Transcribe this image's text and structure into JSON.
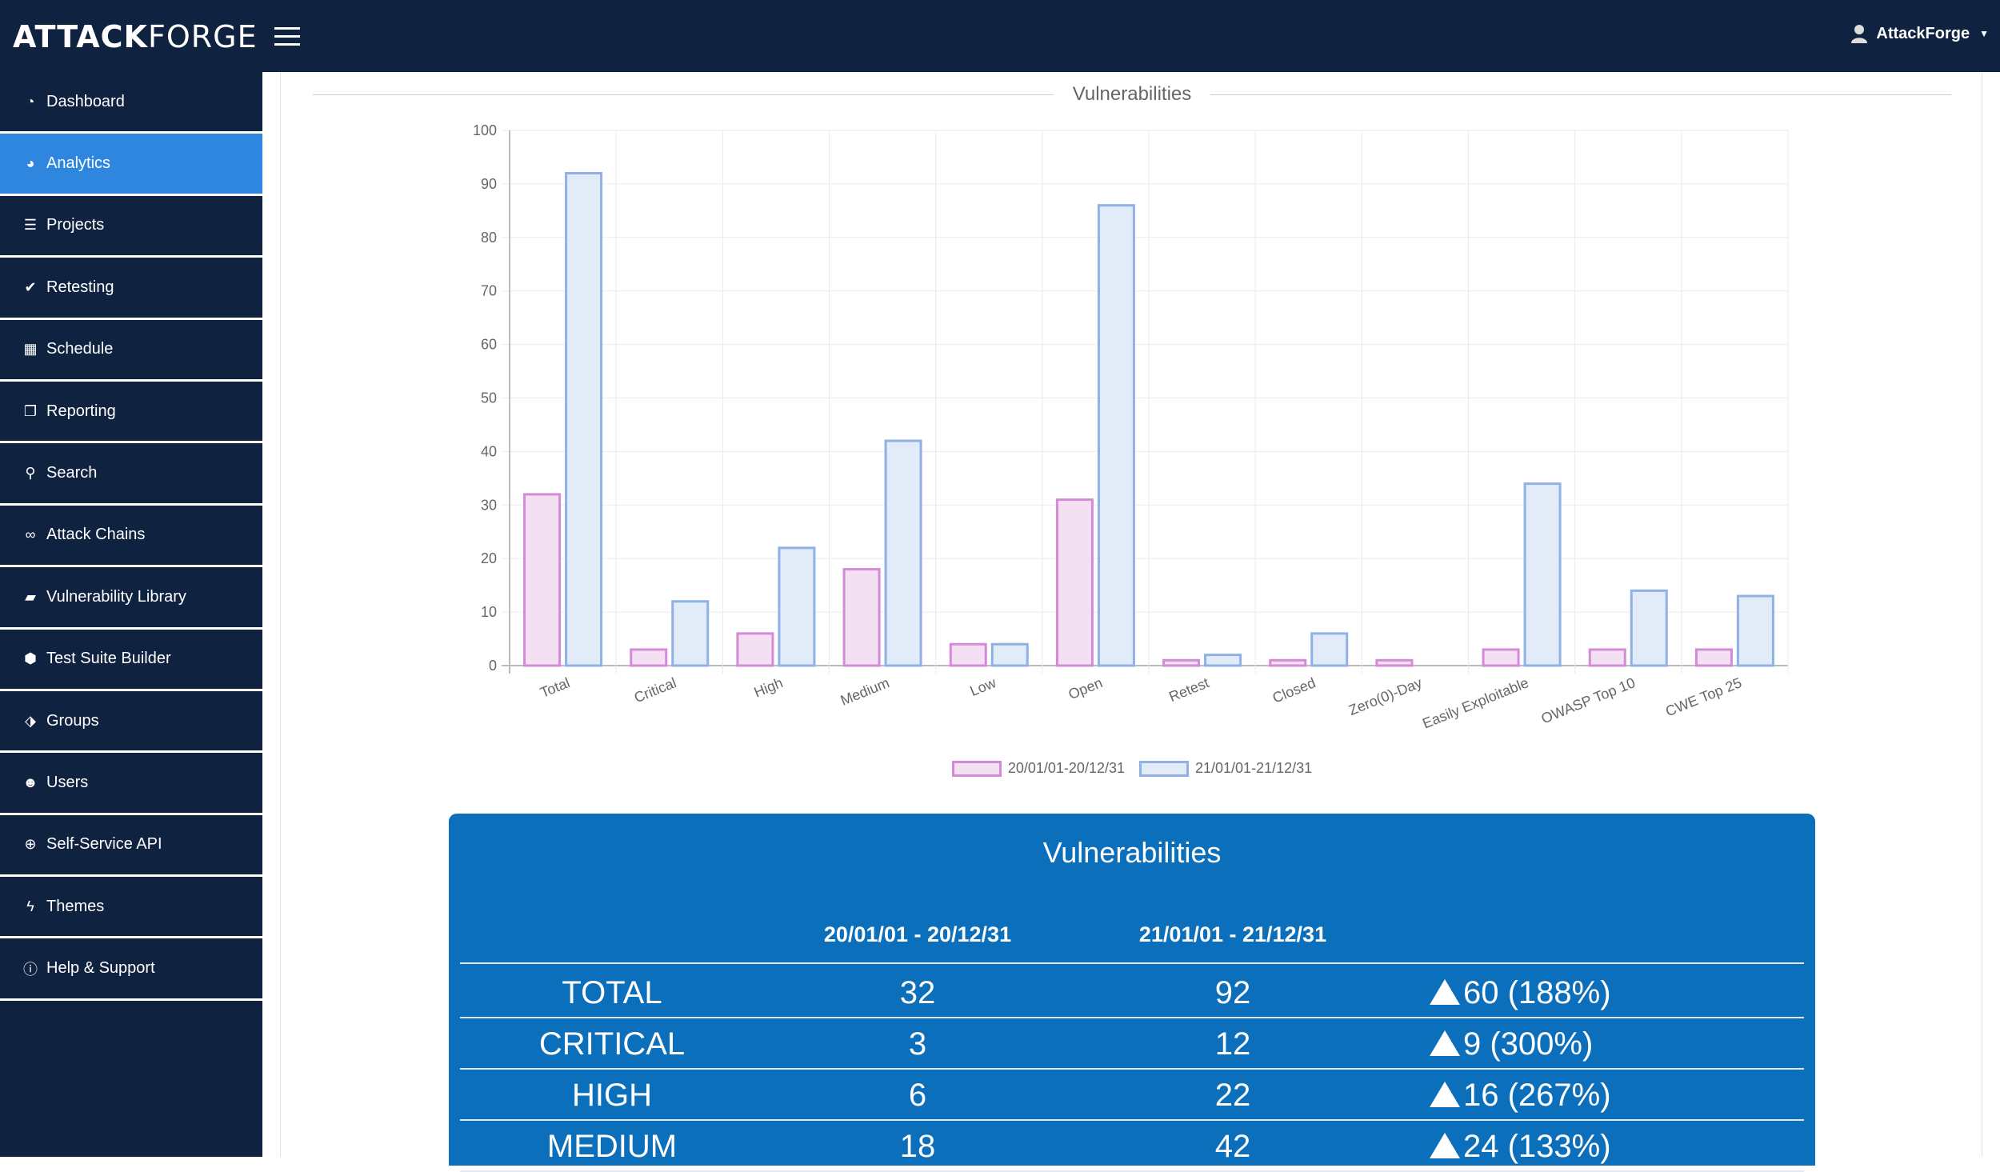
{
  "app": {
    "logo_bold": "ATTACK",
    "logo_thin": "FORGE",
    "user": "AttackForge"
  },
  "sidebar": {
    "items": [
      {
        "label": "Dashboard",
        "icon": "dashboard-icon",
        "glyph": "◔",
        "active": false
      },
      {
        "label": "Analytics",
        "icon": "pie-chart-icon",
        "glyph": "◕",
        "active": true
      },
      {
        "label": "Projects",
        "icon": "list-icon",
        "glyph": "☰",
        "active": false
      },
      {
        "label": "Retesting",
        "icon": "check-icon",
        "glyph": "✔",
        "active": false
      },
      {
        "label": "Schedule",
        "icon": "calendar-icon",
        "glyph": "▦",
        "active": false
      },
      {
        "label": "Reporting",
        "icon": "document-icon",
        "glyph": "❐",
        "active": false
      },
      {
        "label": "Search",
        "icon": "search-icon",
        "glyph": "⚲",
        "active": false
      },
      {
        "label": "Attack Chains",
        "icon": "link-icon",
        "glyph": "∞",
        "active": false
      },
      {
        "label": "Vulnerability Library",
        "icon": "book-icon",
        "glyph": "▰",
        "active": false
      },
      {
        "label": "Test Suite Builder",
        "icon": "cube-icon",
        "glyph": "⬢",
        "active": false
      },
      {
        "label": "Groups",
        "icon": "tags-icon",
        "glyph": "⬗",
        "active": false
      },
      {
        "label": "Users",
        "icon": "users-icon",
        "glyph": "☻",
        "active": false
      },
      {
        "label": "Self-Service API",
        "icon": "search-plus-icon",
        "glyph": "⊕",
        "active": false
      },
      {
        "label": "Themes",
        "icon": "bolt-icon",
        "glyph": "ϟ",
        "active": false
      },
      {
        "label": "Help & Support",
        "icon": "info-icon",
        "glyph": "ⓘ",
        "active": false
      }
    ]
  },
  "section_title": "Vulnerabilities",
  "chart_data": {
    "type": "bar",
    "categories": [
      "Total",
      "Critical",
      "High",
      "Medium",
      "Low",
      "Open",
      "Retest",
      "Closed",
      "Zero(0)-Day",
      "Easily Exploitable",
      "OWASP Top 10",
      "CWE Top 25"
    ],
    "series": [
      {
        "name": "20/01/01-20/12/31",
        "values": [
          32,
          3,
          6,
          18,
          4,
          31,
          1,
          1,
          1,
          3,
          3,
          3
        ],
        "fill": "#f3e1f3",
        "stroke": "#d48ad6"
      },
      {
        "name": "21/01/01-21/12/31",
        "values": [
          92,
          12,
          22,
          42,
          4,
          86,
          2,
          6,
          0,
          34,
          14,
          13
        ],
        "fill": "#e2ebf8",
        "stroke": "#8fb1e6"
      }
    ],
    "ylim": [
      0,
      100
    ],
    "yticks": [
      0,
      10,
      20,
      30,
      40,
      50,
      60,
      70,
      80,
      90,
      100
    ],
    "grid": true,
    "legend": "bottom"
  },
  "summary": {
    "title": "Vulnerabilities",
    "col1": "20/01/01 - 20/12/31",
    "col2": "21/01/01 - 21/12/31",
    "rows": [
      {
        "label": "TOTAL",
        "v1": "32",
        "v2": "92",
        "delta": "60 (188%)"
      },
      {
        "label": "CRITICAL",
        "v1": "3",
        "v2": "12",
        "delta": "9 (300%)"
      },
      {
        "label": "HIGH",
        "v1": "6",
        "v2": "22",
        "delta": "16 (267%)"
      },
      {
        "label": "MEDIUM",
        "v1": "18",
        "v2": "42",
        "delta": "24 (133%)"
      }
    ]
  }
}
